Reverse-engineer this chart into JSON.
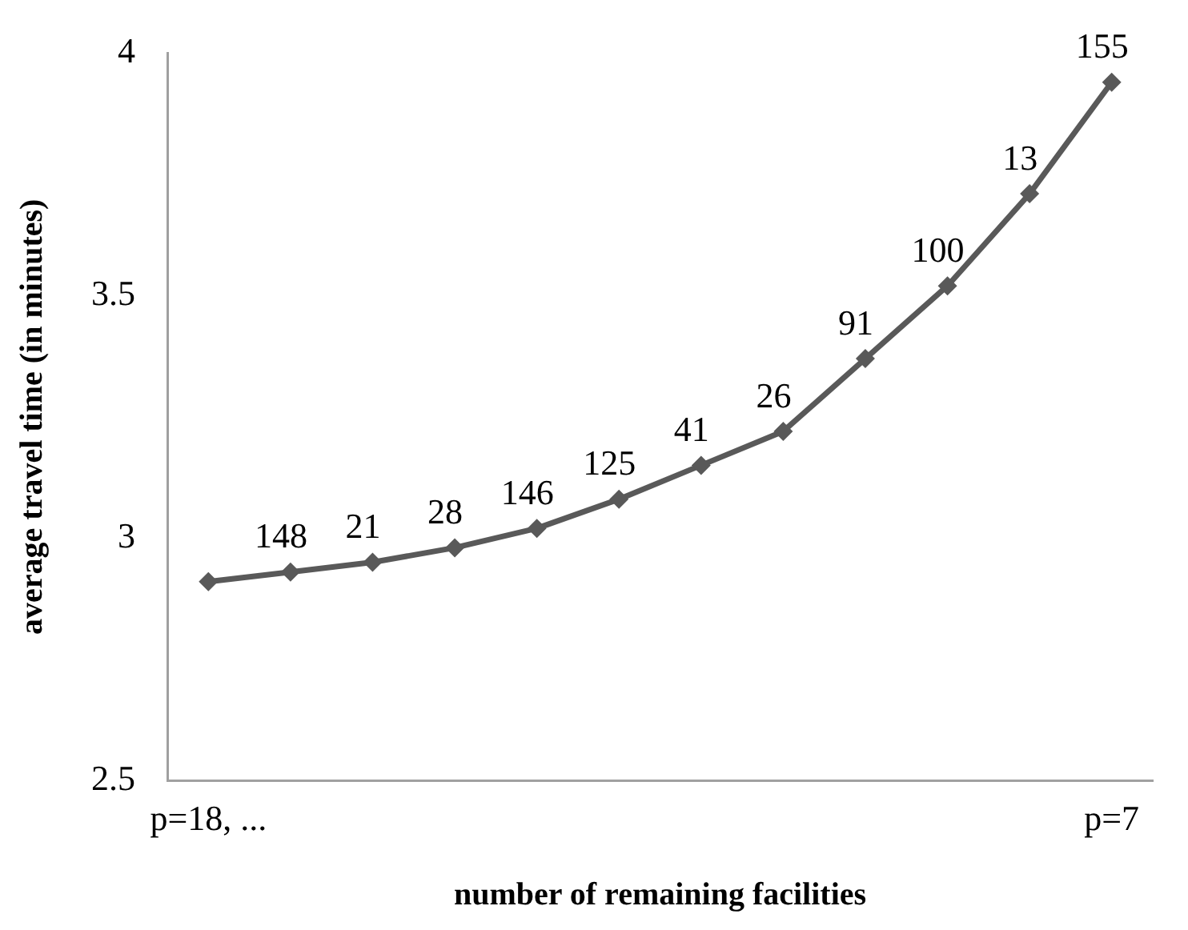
{
  "chart_data": {
    "type": "line",
    "xlabel": "number of remaining facilities",
    "ylabel": "average travel time (in minutes)",
    "categories": [
      "p=18, ...",
      null,
      null,
      null,
      null,
      null,
      null,
      null,
      null,
      null,
      null,
      "p=7"
    ],
    "series": [
      {
        "color": "#595959",
        "values": [
          2.91,
          2.93,
          2.95,
          2.98,
          3.02,
          3.08,
          3.15,
          3.22,
          3.37,
          3.52,
          3.71,
          3.94
        ]
      }
    ],
    "annotations": [
      {
        "text": "148",
        "y": 2.93
      },
      {
        "text": "21",
        "y": 2.95
      },
      {
        "text": "28",
        "y": 2.98
      },
      {
        "text": "146",
        "y": 3.02
      },
      {
        "text": "125",
        "y": 3.08
      },
      {
        "text": "41",
        "y": 3.15
      },
      {
        "text": "26",
        "y": 3.22
      },
      {
        "text": "91",
        "y": 3.37
      },
      {
        "text": "100",
        "y": 3.52
      },
      {
        "text": "13",
        "y": 3.71
      },
      {
        "text": "155",
        "y": 3.94
      }
    ],
    "ylim": [
      2.5,
      4
    ],
    "yticks": [
      2.5,
      3,
      3.5,
      4
    ],
    "grid": false,
    "legend": false,
    "marker": "diamond",
    "line_style": "solid"
  }
}
